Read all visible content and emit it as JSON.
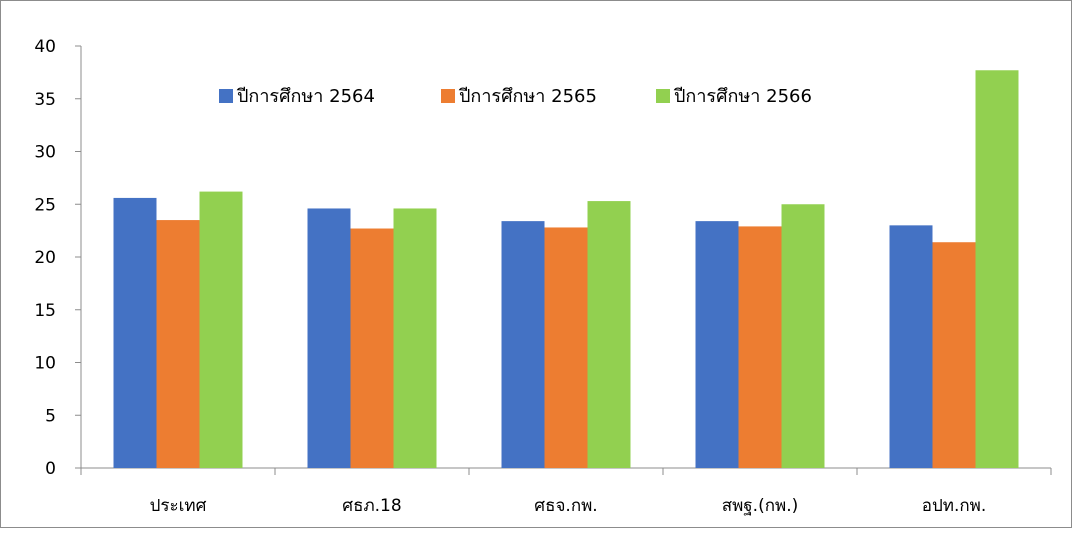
{
  "chart_data": {
    "type": "bar",
    "title": "",
    "xlabel": "",
    "ylabel": "",
    "ylim": [
      0,
      40
    ],
    "yticks": [
      0,
      5,
      10,
      15,
      20,
      25,
      30,
      35,
      40
    ],
    "grid": false,
    "legend_position": "top",
    "categories": [
      "ประเทศ",
      "ศธภ.18",
      "ศธจ.กพ.",
      "สพฐ.(กพ.)",
      "อปท.กพ."
    ],
    "series": [
      {
        "name": "ปีการศึกษา 2564",
        "color": "#4472C4",
        "values": [
          25.6,
          24.6,
          23.4,
          23.4,
          23.0
        ]
      },
      {
        "name": "ปีการศึกษา 2565",
        "color": "#ED7D31",
        "values": [
          23.5,
          22.7,
          22.8,
          22.9,
          21.4
        ]
      },
      {
        "name": "ปีการศึกษา 2566",
        "color": "#92D050",
        "values": [
          26.2,
          24.6,
          25.3,
          25.0,
          37.7
        ]
      }
    ]
  }
}
